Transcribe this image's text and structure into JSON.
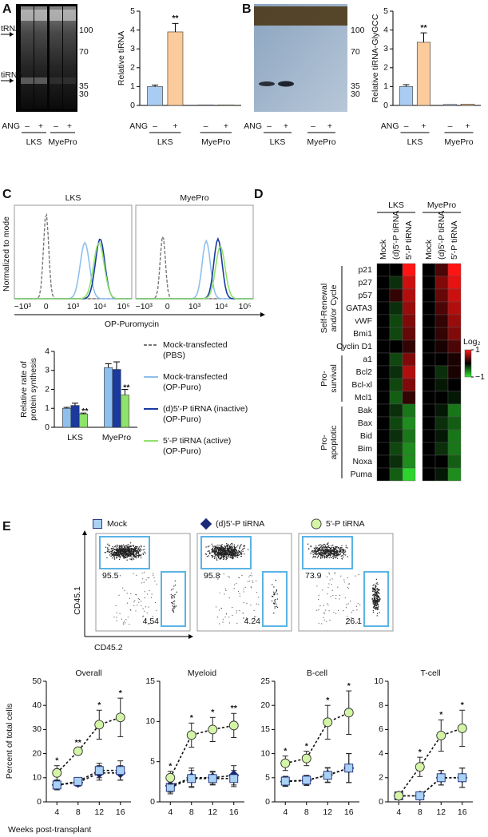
{
  "panel_labels": [
    "A",
    "B",
    "C",
    "D",
    "E"
  ],
  "gel_a": {
    "bands": [
      "tRNA",
      "tiRNA"
    ],
    "markers": [
      "100",
      "70",
      "35",
      "30"
    ]
  },
  "gel_b": {
    "markers": [
      "100",
      "70",
      "35",
      "30"
    ]
  },
  "histogram": {
    "titles": [
      "LKS",
      "MyePro"
    ],
    "xlabel": "OP-Puromycin",
    "ylabel": "Normalized to mode",
    "xticks": [
      "−10³",
      "0",
      "10³",
      "10⁴",
      "10⁵"
    ],
    "legend": [
      {
        "name": "Mock-transfected (PBS)",
        "color": "#777777",
        "dash": true
      }
    ]
  },
  "line_axes": {
    "ylabel": "Percent of total cells",
    "xlabel": "Weeks post-transplant"
  },
  "chart_data": [
    {
      "type": "bar",
      "ylabel": [
        "Relative tiRNA"
      ],
      "treatment_label": "ANG",
      "categories": [
        "–",
        "+",
        "–",
        "+"
      ],
      "groups": [
        "LKS",
        "MyePro"
      ],
      "values": [
        1.0,
        3.9,
        0.03,
        0.03
      ],
      "errors": [
        0.08,
        0.45,
        null,
        null
      ],
      "colors": [
        "#a9cdf2",
        "#fccb9b",
        "#a9cdf2",
        "#fccb9b"
      ],
      "annotations": [
        null,
        "**",
        null,
        null
      ],
      "ylim": [
        0,
        5
      ],
      "yticks": [
        0,
        1,
        2,
        3,
        4,
        5
      ]
    },
    {
      "type": "bar",
      "ylabel": [
        "Relative tiRNA-GlyGCC"
      ],
      "treatment_label": "ANG",
      "categories": [
        "–",
        "+",
        "–",
        "+"
      ],
      "groups": [
        "LKS",
        "MyePro"
      ],
      "values": [
        1.0,
        3.35,
        0.05,
        0.07
      ],
      "errors": [
        0.1,
        0.5,
        null,
        null
      ],
      "colors": [
        "#a9cdf2",
        "#fccb9b",
        "#a9cdf2",
        "#fccb9b"
      ],
      "annotations": [
        null,
        "**",
        null,
        null
      ],
      "ylim": [
        0,
        5
      ],
      "yticks": [
        0,
        1,
        2,
        3,
        4,
        5
      ]
    },
    {
      "type": "bar",
      "ylabel": [
        "Relative rate of",
        "protein synthesis"
      ],
      "categories": [
        "LKS",
        "MyePro"
      ],
      "series": [
        {
          "name": "Mock-transfected (OP-Puro)",
          "color": "#8ec0ee",
          "values": [
            1.0,
            3.15
          ],
          "errors": [
            0.05,
            0.2
          ]
        },
        {
          "name": "(d)5′-P tiRNA (inactive) (OP-Puro)",
          "color": "#1a3aa0",
          "values": [
            1.15,
            3.05
          ],
          "errors": [
            0.12,
            0.4
          ]
        },
        {
          "name": "5′-P tiRNA (active) (OP-Puro)",
          "color": "#8fe26a",
          "values": [
            0.7,
            1.7
          ],
          "errors": [
            0.05,
            0.3
          ],
          "annotations": [
            "**",
            "**"
          ]
        }
      ],
      "ylim": [
        0,
        4
      ],
      "yticks": [
        0,
        1,
        2,
        3,
        4
      ]
    },
    {
      "type": "line",
      "title": "Overall",
      "x": [
        4,
        8,
        12,
        16
      ],
      "xlim": [
        2,
        18
      ],
      "xticks": [
        4,
        8,
        12,
        16
      ],
      "ylim": [
        0,
        50
      ],
      "yticks": [
        0,
        10,
        20,
        30,
        40,
        50
      ],
      "annotations": [
        "*",
        "**",
        "*",
        "*"
      ],
      "series": [
        {
          "name": "Mock",
          "color": "#a9d1f3",
          "marker": "square",
          "values": [
            7,
            8.5,
            13,
            13
          ],
          "errors": [
            2,
            1.5,
            3,
            4
          ]
        },
        {
          "name": "(d)5′-P tiRNA",
          "color": "#1b2a7a",
          "marker": "diamond",
          "values": [
            7,
            8,
            12,
            12
          ],
          "errors": [
            2,
            1.5,
            3,
            3
          ]
        },
        {
          "name": "5′-P tiRNA",
          "color": "#d4f5a6",
          "marker": "circle",
          "values": [
            12,
            21,
            32,
            35
          ],
          "errors": [
            3,
            1.5,
            6,
            8
          ]
        }
      ]
    },
    {
      "type": "line",
      "title": "Myeloid",
      "x": [
        4,
        8,
        12,
        16
      ],
      "xlim": [
        2,
        18
      ],
      "xticks": [
        4,
        8,
        12,
        16
      ],
      "ylim": [
        0,
        15
      ],
      "yticks": [
        0,
        5,
        10,
        15
      ],
      "annotations": [
        "*",
        "*",
        "*",
        "**"
      ],
      "series": [
        {
          "name": "Mock",
          "color": "#a9d1f3",
          "marker": "square",
          "values": [
            1.8,
            2.9,
            2.9,
            2.9
          ],
          "errors": [
            0.8,
            1,
            0.8,
            1
          ]
        },
        {
          "name": "(d)5′-P tiRNA",
          "color": "#1b2a7a",
          "marker": "diamond",
          "values": [
            2,
            3,
            3,
            3.3
          ],
          "errors": [
            0.8,
            1.2,
            0.8,
            1.2
          ]
        },
        {
          "name": "5′-P tiRNA",
          "color": "#d4f5a6",
          "marker": "circle",
          "values": [
            3,
            8.3,
            9,
            9.5
          ],
          "errors": [
            0.8,
            1.5,
            1.5,
            1.5
          ]
        }
      ]
    },
    {
      "type": "line",
      "title": "B-cell",
      "x": [
        4,
        8,
        12,
        16
      ],
      "xlim": [
        2,
        18
      ],
      "xticks": [
        4,
        8,
        12,
        16
      ],
      "ylim": [
        0,
        25
      ],
      "yticks": [
        0,
        5,
        10,
        15,
        20,
        25
      ],
      "annotations": [
        "*",
        "*",
        "*",
        "*"
      ],
      "series": [
        {
          "name": "Mock",
          "color": "#a9d1f3",
          "marker": "square",
          "values": [
            4.3,
            4.5,
            5.5,
            7
          ],
          "errors": [
            1,
            1,
            1.5,
            3
          ]
        },
        {
          "name": "(d)5′-P tiRNA",
          "color": "#1b2a7a",
          "marker": "diamond",
          "values": [
            4.2,
            4.4,
            5.6,
            7
          ],
          "errors": [
            1,
            1,
            1.5,
            3
          ]
        },
        {
          "name": "5′-P tiRNA",
          "color": "#d4f5a6",
          "marker": "circle",
          "values": [
            8,
            9,
            16.5,
            18.5
          ],
          "errors": [
            1.5,
            1.5,
            3.5,
            4.5
          ]
        }
      ]
    },
    {
      "type": "line",
      "title": "T-cell",
      "x": [
        4,
        8,
        12,
        16
      ],
      "xlim": [
        2,
        18
      ],
      "xticks": [
        4,
        8,
        12,
        16
      ],
      "ylim": [
        0,
        10
      ],
      "yticks": [
        0,
        2,
        4,
        6,
        8,
        10
      ],
      "annotations": [
        null,
        "*",
        "*",
        "*"
      ],
      "series": [
        {
          "name": "Mock",
          "color": "#a9d1f3",
          "marker": "square",
          "values": [
            0.5,
            0.5,
            2,
            2
          ],
          "errors": [
            0.2,
            0.2,
            0.6,
            0.8
          ]
        },
        {
          "name": "(d)5′-P tiRNA",
          "color": "#1b2a7a",
          "marker": "diamond",
          "values": [
            0.5,
            0.5,
            2,
            2
          ],
          "errors": [
            0.2,
            0.2,
            0.6,
            0.8
          ]
        },
        {
          "name": "5′-P tiRNA",
          "color": "#d4f5a6",
          "marker": "circle",
          "values": [
            0.5,
            2.9,
            5.5,
            6.1
          ],
          "errors": [
            0.3,
            0.8,
            1.3,
            1.5
          ]
        }
      ]
    }
  ],
  "heatmap": {
    "groups": [
      "LKS",
      "MyePro"
    ],
    "columns": [
      "Mock",
      "(d)5′-P tiRNA",
      "5′-P tiRNA"
    ],
    "rows": [
      "p21",
      "p27",
      "p57",
      "GATA3",
      "vWF",
      "Bmi1",
      "Cyclin D1",
      "a1",
      "Bcl2",
      "Bcl-xl",
      "Mcl1",
      "Bak",
      "Bax",
      "Bid",
      "Bim",
      "Noxa",
      "Puma"
    ],
    "row_groups": [
      {
        "label": [
          "Self-Renewal",
          "and/or Cycle"
        ],
        "size": 7
      },
      {
        "label": [
          "Pro-",
          "survival"
        ],
        "size": 4
      },
      {
        "label": [
          "Pro-",
          "apoptotic"
        ],
        "size": 6
      }
    ],
    "values": [
      [
        0,
        0,
        1,
        0,
        0.3,
        1
      ],
      [
        0,
        -0.2,
        0.8,
        0,
        0.5,
        0.9
      ],
      [
        0,
        0.2,
        0.7,
        0,
        0.4,
        0.8
      ],
      [
        0,
        -0.2,
        0.6,
        0,
        0.3,
        0.7
      ],
      [
        0,
        -0.3,
        0.5,
        0,
        0.2,
        0.6
      ],
      [
        0,
        -0.3,
        0.4,
        0,
        0.2,
        0.5
      ],
      [
        0,
        0,
        0.2,
        0,
        0.1,
        0.3
      ],
      [
        0,
        -0.3,
        0.5,
        0,
        0,
        0.1
      ],
      [
        0,
        -0.2,
        0.7,
        0,
        -0.2,
        0.1
      ],
      [
        0,
        -0.3,
        0.5,
        0,
        -0.1,
        0
      ],
      [
        0,
        -0.4,
        0.2,
        0,
        0,
        -0.1
      ],
      [
        0,
        -0.2,
        -0.5,
        0,
        -0.1,
        -0.5
      ],
      [
        0,
        -0.3,
        -0.6,
        0,
        -0.2,
        -0.4
      ],
      [
        0,
        -0.2,
        -0.5,
        0,
        -0.1,
        -0.5
      ],
      [
        0,
        -0.3,
        -0.6,
        0,
        -0.2,
        -0.5
      ],
      [
        0,
        -0.2,
        -0.6,
        0,
        0,
        -0.4
      ],
      [
        0,
        -0.4,
        -0.9,
        0,
        -0.1,
        -0.6
      ]
    ],
    "scale_label": "Log₂",
    "lim": [
      -1,
      1
    ],
    "ticks": [
      1,
      {
        "value": -1,
        "label": "−1"
      }
    ]
  },
  "flow": {
    "xlabel": "CD45.2",
    "ylabel": "CD45.1",
    "plots": [
      {
        "gates": [
          95.5,
          4.54
        ]
      },
      {
        "gates": [
          95.8,
          4.24
        ]
      },
      {
        "gates": [
          73.9,
          26.1
        ]
      }
    ]
  }
}
